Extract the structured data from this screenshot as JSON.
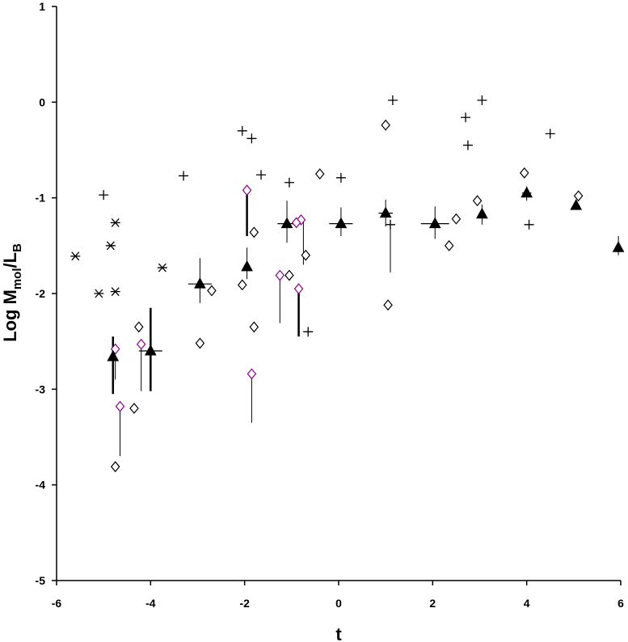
{
  "chart_data": {
    "type": "scatter",
    "title": "",
    "xlabel": "t",
    "ylabel_main": "Log M",
    "ylabel_sub1": "mol",
    "ylabel_mid": "/L",
    "ylabel_sub2": "B",
    "xlim": [
      -6,
      6
    ],
    "ylim": [
      -5,
      1
    ],
    "x_ticks": [
      -6,
      -4,
      -2,
      0,
      2,
      4,
      6
    ],
    "y_ticks": [
      -5,
      -4,
      -3,
      -2,
      -1,
      0,
      1
    ],
    "grid": false,
    "legend": "none",
    "series": [
      {
        "marker": "plus",
        "color": "#000000",
        "points": [
          [
            -5.0,
            -0.97
          ],
          [
            -3.3,
            -0.77
          ],
          [
            -2.05,
            -0.3
          ],
          [
            -1.85,
            -0.38
          ],
          [
            -1.65,
            -0.76
          ],
          [
            -1.05,
            -0.84
          ],
          [
            0.05,
            -0.79
          ],
          [
            1.15,
            0.02
          ],
          [
            2.7,
            -0.16
          ],
          [
            2.75,
            -0.45
          ],
          [
            3.05,
            0.02
          ],
          [
            4.5,
            -0.33
          ],
          [
            4.05,
            -1.28
          ],
          [
            1.1,
            -1.28
          ],
          [
            -0.65,
            -2.4
          ]
        ]
      },
      {
        "marker": "asterisk",
        "color": "#000000",
        "points": [
          [
            -5.6,
            -1.61
          ],
          [
            -5.1,
            -2.0
          ],
          [
            -4.85,
            -1.5
          ],
          [
            -4.75,
            -1.26
          ],
          [
            -4.75,
            -1.98
          ],
          [
            -3.75,
            -1.73
          ]
        ]
      },
      {
        "marker": "diamond",
        "color": "#000000",
        "points": [
          [
            -4.75,
            -3.81
          ],
          [
            -4.35,
            -3.2
          ],
          [
            -4.25,
            -2.35
          ],
          [
            -2.95,
            -2.52
          ],
          [
            -2.7,
            -1.97
          ],
          [
            -2.05,
            -1.91
          ],
          [
            -1.8,
            -1.36
          ],
          [
            -1.8,
            -2.35
          ],
          [
            -1.05,
            -1.81
          ],
          [
            -0.7,
            -1.6
          ],
          [
            -0.4,
            -0.75
          ],
          [
            1.0,
            -0.24
          ],
          [
            1.05,
            -2.12
          ],
          [
            2.35,
            -1.5
          ],
          [
            2.5,
            -1.22
          ],
          [
            2.95,
            -1.03
          ],
          [
            3.95,
            -0.74
          ],
          [
            5.1,
            -0.98
          ]
        ]
      },
      {
        "marker": "diamond",
        "color": "#8b008b",
        "points": [
          [
            -4.75,
            -2.58
          ],
          [
            -4.65,
            -3.18
          ],
          [
            -4.2,
            -2.53
          ],
          [
            -1.95,
            -0.92
          ],
          [
            -1.85,
            -2.84
          ],
          [
            -1.25,
            -1.81
          ],
          [
            -0.85,
            -1.95
          ],
          [
            -0.8,
            -1.23
          ],
          [
            -0.9,
            -1.26
          ]
        ]
      },
      {
        "marker": "triangle",
        "color": "#000000",
        "points": [
          [
            -4.8,
            -2.66
          ],
          [
            -4.0,
            -2.6
          ],
          [
            -2.95,
            -1.9
          ],
          [
            -1.95,
            -1.72
          ],
          [
            -1.1,
            -1.27
          ],
          [
            0.05,
            -1.27
          ],
          [
            1.0,
            -1.16
          ],
          [
            2.05,
            -1.27
          ],
          [
            3.05,
            -1.17
          ],
          [
            4.0,
            -0.95
          ],
          [
            5.05,
            -1.08
          ],
          [
            5.95,
            -1.52
          ]
        ]
      }
    ],
    "error_bars": [
      {
        "x": -4.8,
        "y1": -2.45,
        "y2": -3.05,
        "heavy": true
      },
      {
        "x": -4.75,
        "y1": -2.7,
        "y2": -2.9,
        "heavy": false
      },
      {
        "x": -4.65,
        "y1": -3.2,
        "y2": -3.7,
        "heavy": false
      },
      {
        "x": -4.2,
        "y1": -2.55,
        "y2": -3.02,
        "heavy": false
      },
      {
        "x": -4.0,
        "y1": -2.15,
        "y2": -3.02,
        "heavy": true
      },
      {
        "x": -2.95,
        "y1": -1.63,
        "y2": -2.1,
        "heavy": false
      },
      {
        "x": -1.95,
        "y1": -0.95,
        "y2": -1.4,
        "heavy": true
      },
      {
        "x": -1.95,
        "y1": -1.52,
        "y2": -1.85,
        "heavy": false
      },
      {
        "x": -1.85,
        "y1": -2.86,
        "y2": -3.35,
        "heavy": false
      },
      {
        "x": -1.1,
        "y1": -1.03,
        "y2": -1.47,
        "heavy": false
      },
      {
        "x": -1.25,
        "y1": -1.83,
        "y2": -2.31,
        "heavy": false
      },
      {
        "x": -0.85,
        "y1": -1.97,
        "y2": -2.45,
        "heavy": true
      },
      {
        "x": -0.75,
        "y1": -1.25,
        "y2": -1.7,
        "heavy": false
      },
      {
        "x": 0.05,
        "y1": -1.1,
        "y2": -1.4,
        "heavy": false
      },
      {
        "x": 1.0,
        "y1": -1.02,
        "y2": -1.3,
        "heavy": false
      },
      {
        "x": 1.1,
        "y1": -1.3,
        "y2": -1.78,
        "heavy": false
      },
      {
        "x": 2.05,
        "y1": -1.09,
        "y2": -1.43,
        "heavy": false
      },
      {
        "x": 3.05,
        "y1": -1.07,
        "y2": -1.28,
        "heavy": false
      },
      {
        "x": 4.0,
        "y1": -0.88,
        "y2": -1.03,
        "heavy": false
      },
      {
        "x": 5.95,
        "y1": -1.4,
        "y2": -1.6,
        "heavy": false
      }
    ],
    "h_bars": [
      {
        "y": -2.6,
        "x1": -4.25,
        "x2": -3.75
      },
      {
        "y": -1.9,
        "x1": -3.2,
        "x2": -2.7
      },
      {
        "y": -1.27,
        "x1": -1.3,
        "x2": -0.9
      },
      {
        "y": -1.27,
        "x1": -0.2,
        "x2": 0.3
      },
      {
        "y": -1.27,
        "x1": 1.75,
        "x2": 2.35
      },
      {
        "y": -1.16,
        "x1": 0.85,
        "x2": 1.15
      },
      {
        "y": -0.95,
        "x1": 3.9,
        "x2": 4.1
      }
    ]
  }
}
